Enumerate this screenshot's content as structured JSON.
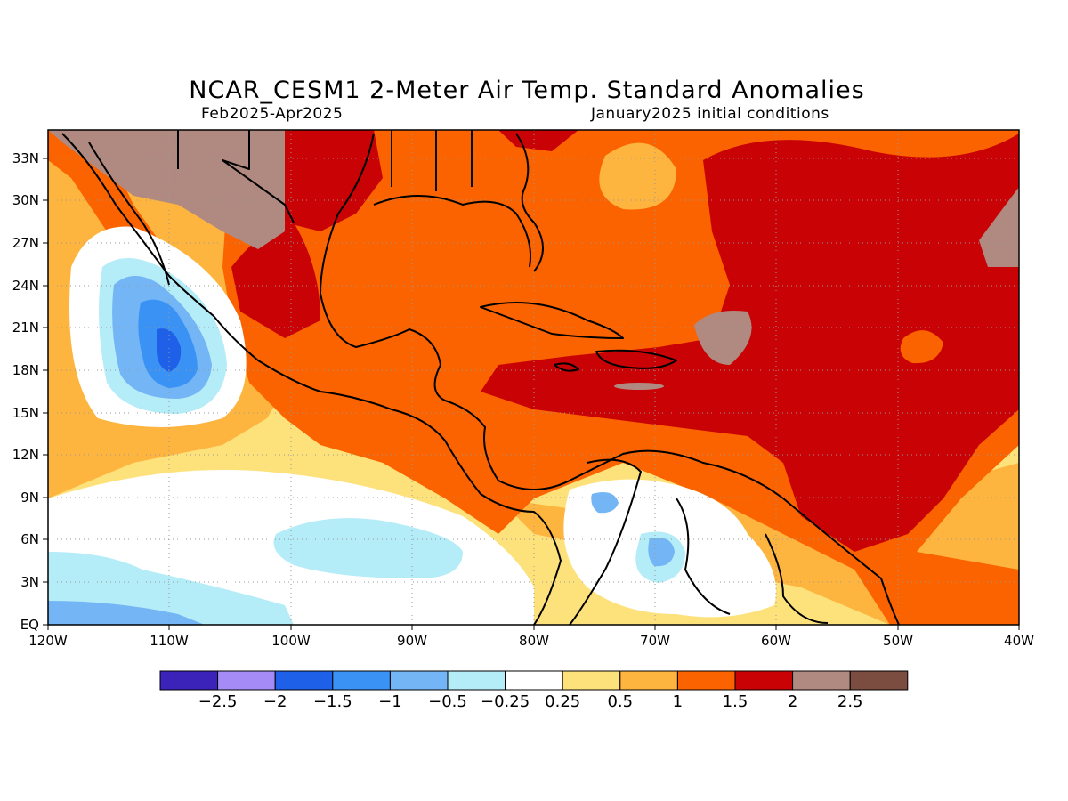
{
  "title": "NCAR_CESM1 2-Meter Air Temp. Standard Anomalies",
  "period": "Feb2025-Apr2025",
  "initial_conditions": "January2025 initial conditions",
  "map": {
    "lon_range": [
      -120,
      -40
    ],
    "lat_range": [
      0,
      35
    ],
    "lat_ticks": [
      "EQ",
      "3N",
      "6N",
      "9N",
      "12N",
      "15N",
      "18N",
      "21N",
      "24N",
      "27N",
      "30N",
      "33N"
    ],
    "lon_ticks": [
      "120W",
      "110W",
      "100W",
      "90W",
      "80W",
      "70W",
      "60W",
      "50W",
      "40W"
    ],
    "grid": "dotted"
  },
  "colorbar": {
    "colors": [
      "#3b22b8",
      "#a58bf5",
      "#1f60e8",
      "#3a93f4",
      "#73b5f5",
      "#b4ecf7",
      "#ffffff",
      "#fde27c",
      "#fdb53f",
      "#fa6300",
      "#c80205",
      "#b08a80",
      "#7b4c40"
    ],
    "labels": [
      "-2.5",
      "-2",
      "-1.5",
      "-1",
      "-0.5",
      "-0.25",
      "0.25",
      "0.5",
      "1",
      "1.5",
      "2",
      "2.5"
    ]
  }
}
